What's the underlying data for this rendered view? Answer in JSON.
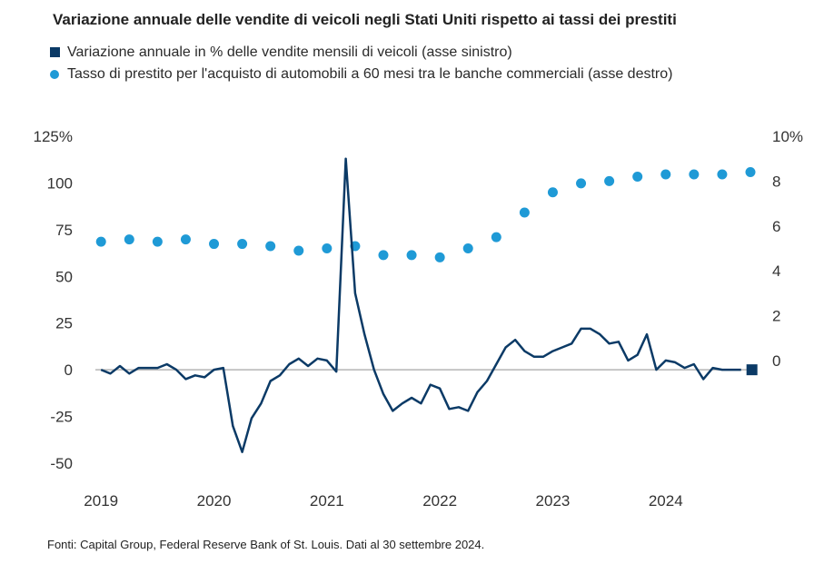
{
  "title": "Variazione annuale delle vendite di veicoli negli Stati Uniti rispetto ai tassi dei prestiti",
  "source": "Fonti: Capital Group, Federal Reserve Bank of St. Louis. Dati al 30 settembre 2024.",
  "colors": {
    "line": "#0b3a66",
    "dots": "#1f9ad6",
    "zero_line": "#b5b5b5"
  },
  "chart_data": {
    "type": "line",
    "legend": [
      {
        "name": "Variazione annuale in % delle vendite mensili di veicoli (asse sinistro)",
        "marker": "square"
      },
      {
        "name": "Tasso di prestito per l'acquisto di automobili a 60 mesi tra le banche commerciali (asse destro)",
        "marker": "dot"
      }
    ],
    "x_ticks": [
      {
        "label": "2019",
        "t": 2019.0
      },
      {
        "label": "2020",
        "t": 2020.0
      },
      {
        "label": "2021",
        "t": 2021.0
      },
      {
        "label": "2022",
        "t": 2022.0
      },
      {
        "label": "2023",
        "t": 2023.0
      },
      {
        "label": "2024",
        "t": 2024.0
      }
    ],
    "x_range": [
      2018.95,
      2024.75
    ],
    "y_left": {
      "ylim": [
        -50,
        125
      ],
      "ticks": [
        "125%",
        "100",
        "75",
        "50",
        "25",
        "0",
        "-25",
        "-50"
      ],
      "values": [
        125,
        100,
        75,
        50,
        25,
        0,
        -25,
        -50
      ]
    },
    "y_right": {
      "ylim": [
        0,
        10
      ],
      "ticks": [
        "10%",
        "8",
        "6",
        "4",
        "2",
        "0"
      ],
      "values": [
        10,
        8,
        6,
        4,
        2,
        0
      ]
    },
    "series": [
      {
        "name": "Variazione annuale in % delle vendite mensili di veicoli (asse sinistro)",
        "axis": "left",
        "style": "line",
        "x": [
          2019.0,
          2019.083,
          2019.167,
          2019.25,
          2019.333,
          2019.417,
          2019.5,
          2019.583,
          2019.667,
          2019.75,
          2019.833,
          2019.917,
          2020.0,
          2020.083,
          2020.167,
          2020.25,
          2020.333,
          2020.417,
          2020.5,
          2020.583,
          2020.667,
          2020.75,
          2020.833,
          2020.917,
          2021.0,
          2021.083,
          2021.167,
          2021.25,
          2021.333,
          2021.417,
          2021.5,
          2021.583,
          2021.667,
          2021.75,
          2021.833,
          2021.917,
          2022.0,
          2022.083,
          2022.167,
          2022.25,
          2022.333,
          2022.417,
          2022.5,
          2022.583,
          2022.667,
          2022.75,
          2022.833,
          2022.917,
          2023.0,
          2023.083,
          2023.167,
          2023.25,
          2023.333,
          2023.417,
          2023.5,
          2023.583,
          2023.667,
          2023.75,
          2023.833,
          2023.917,
          2024.0,
          2024.083,
          2024.167,
          2024.25,
          2024.333,
          2024.417,
          2024.5,
          2024.583,
          2024.667
        ],
        "y": [
          0,
          -2,
          2,
          -2,
          1,
          1,
          1,
          3,
          0,
          -5,
          -3,
          -4,
          0,
          1,
          -30,
          -44,
          -26,
          -18,
          -6,
          -3,
          3,
          6,
          2,
          6,
          5,
          -1,
          113,
          41,
          19,
          0,
          -13,
          -22,
          -18,
          -15,
          -18,
          -8,
          -10,
          -21,
          -20,
          -22,
          -12,
          -6,
          3,
          12,
          16,
          10,
          7,
          7,
          10,
          12,
          14,
          22,
          22,
          19,
          14,
          15,
          5,
          8,
          19,
          0,
          5,
          4,
          1,
          3,
          -5,
          1,
          0,
          0,
          0
        ]
      },
      {
        "name": "Tasso di prestito per l'acquisto di automobili a 60 mesi tra le banche commerciali (asse destro)",
        "axis": "right",
        "style": "dots",
        "x": [
          2019.0,
          2019.25,
          2019.5,
          2019.75,
          2020.0,
          2020.25,
          2020.5,
          2020.75,
          2021.0,
          2021.25,
          2021.5,
          2021.75,
          2022.0,
          2022.25,
          2022.5,
          2022.75,
          2023.0,
          2023.25,
          2023.5,
          2023.75,
          2024.0,
          2024.25,
          2024.5,
          2024.75
        ],
        "y": [
          5.3,
          5.4,
          5.3,
          5.4,
          5.2,
          5.2,
          5.1,
          4.9,
          5.0,
          5.1,
          4.7,
          4.7,
          4.6,
          5.0,
          5.5,
          6.6,
          7.5,
          7.9,
          8.0,
          8.2,
          8.3,
          8.3,
          8.3,
          8.4
        ]
      }
    ],
    "grid": false
  }
}
